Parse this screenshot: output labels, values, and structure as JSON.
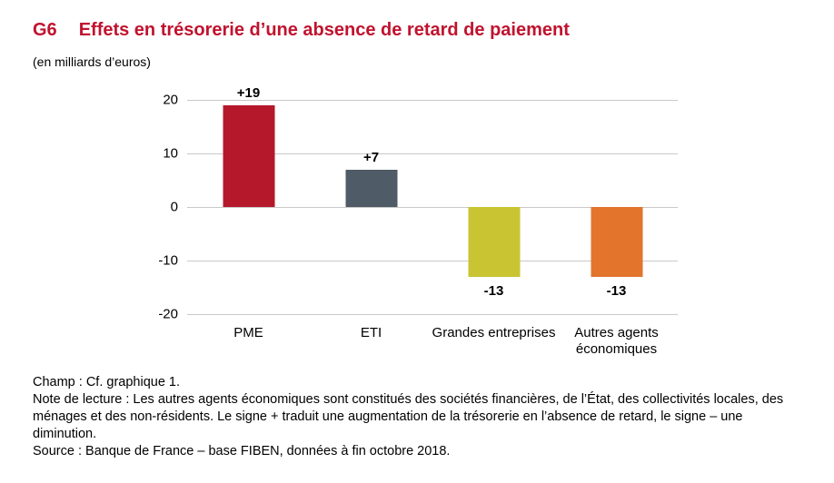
{
  "header": {
    "tag": "G6",
    "title": "Effets en trésorerie d’une absence de retard de paiement",
    "subtitle": "(en milliards d’euros)",
    "accent_color": "#c0132e"
  },
  "chart_data": {
    "type": "bar",
    "categories": [
      "PME",
      "ETI",
      "Grandes entreprises",
      "Autres agents économiques"
    ],
    "values": [
      19,
      7,
      -13,
      -13
    ],
    "value_labels": [
      "+19",
      "+7",
      "-13",
      "-13"
    ],
    "colors": [
      "#b5182b",
      "#4f5b66",
      "#c9c431",
      "#e2742c"
    ],
    "title": "Effets en trésorerie d’une absence de retard de paiement",
    "xlabel": "",
    "ylabel": "(en milliards d’euros)",
    "ylim": [
      -20,
      20
    ],
    "yticks": [
      20,
      10,
      0,
      -10,
      -20
    ],
    "grid": true,
    "legend": false,
    "gridline_color": "#c9c9c9"
  },
  "notes": {
    "champ": "Champ : Cf. graphique 1.",
    "lecture": "Note de lecture : Les autres agents économiques sont constitués des sociétés financières, de l’État, des collectivités locales, des ménages et des non-résidents. Le signe + traduit une augmentation de la trésorerie en l’absence de retard, le signe – une diminution.",
    "source": "Source : Banque de France – base FIBEN, données à fin octobre 2018."
  }
}
